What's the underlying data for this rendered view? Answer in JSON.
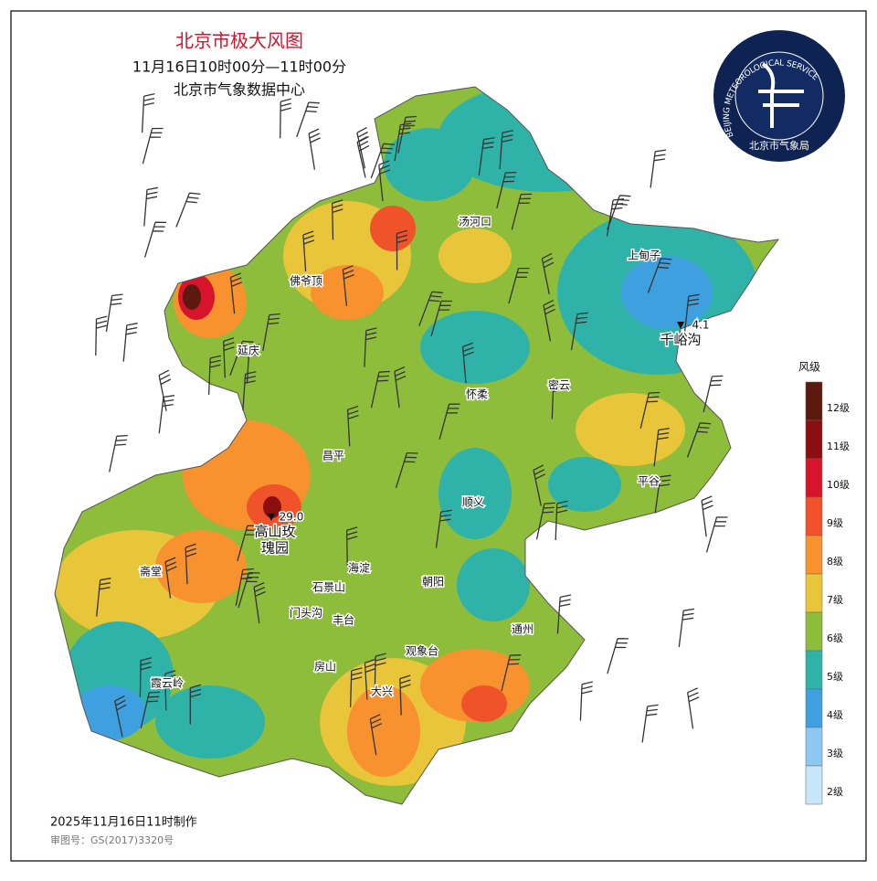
{
  "header": {
    "title": "北京市极大风图",
    "time": "11月16日10时00分—11时00分",
    "source": "北京市气象数据中心"
  },
  "logo": {
    "arc_text": "BEIJING METEOROLOGICAL SERVICE",
    "name": "北京市气象局"
  },
  "legend": {
    "title": "风级",
    "levels": [
      {
        "label": "12级",
        "color": "#5c1a0f"
      },
      {
        "label": "11级",
        "color": "#8b0f10"
      },
      {
        "label": "10级",
        "color": "#d7142b"
      },
      {
        "label": "9级",
        "color": "#f0522a"
      },
      {
        "label": "8级",
        "color": "#f7922e"
      },
      {
        "label": "7级",
        "color": "#e9c53a"
      },
      {
        "label": "6级",
        "color": "#8dbd3b"
      },
      {
        "label": "5级",
        "color": "#2fb3a9"
      },
      {
        "label": "4级",
        "color": "#3fa0e0"
      },
      {
        "label": "3级",
        "color": "#8cc8f0"
      },
      {
        "label": "2级",
        "color": "#c8e6fa"
      }
    ]
  },
  "places": [
    "汤河口",
    "上甸子",
    "佛爷顶",
    "延庆",
    "怀柔",
    "密云",
    "昌平",
    "平谷",
    "顺义",
    "斋堂",
    "海淀",
    "朝阳",
    "石景山",
    "门头沟",
    "丰台",
    "通州",
    "观象台",
    "房山",
    "霞云岭",
    "大兴"
  ],
  "stations": [
    {
      "name_lines": [
        "高山玫",
        "瑰园"
      ],
      "value": "29.0"
    },
    {
      "name_lines": [
        "千峪沟"
      ],
      "value": "4.1"
    }
  ],
  "footer": {
    "made": "2025年11月16日11时制作",
    "approval": "审图号：GS(2017)3320号"
  }
}
